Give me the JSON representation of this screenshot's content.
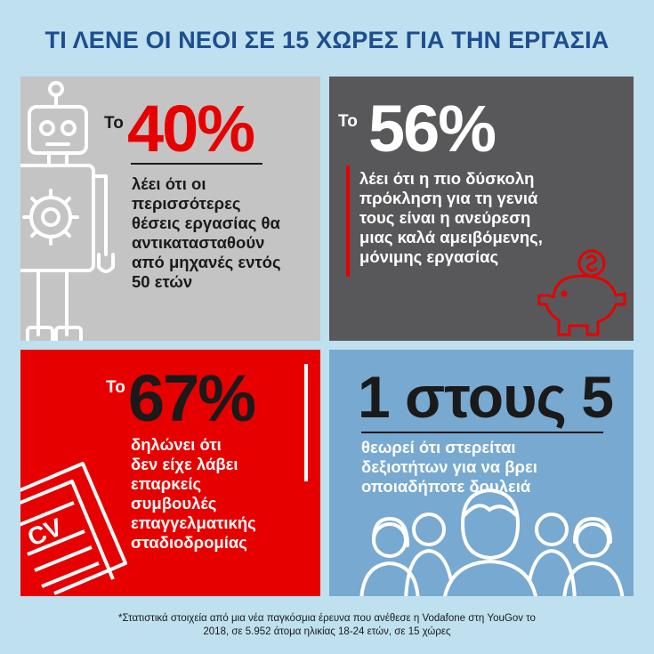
{
  "title": "ΤΙ ΛΕΝΕ ΟΙ ΝΕΟΙ ΣΕ 15 ΧΩΡΕΣ ΓΙΑ ΤΗΝ ΕΡΓΑΣΙΑ",
  "colors": {
    "title": "#1d4e8f",
    "red": "#e60000",
    "dark": "#58585a",
    "grey": "#c4c4c4",
    "blue": "#78a9d1",
    "background": "#bfe0ef"
  },
  "panels": [
    {
      "to": "Το",
      "stat": "40%",
      "body": [
        "λέει ότι οι",
        "περισσότερες",
        "θέσεις εργασίας θα",
        "αντικατασταθούν",
        "από μηχανές εντός",
        "50 ετών"
      ],
      "icon": "robot-gear-icon"
    },
    {
      "to": "Το",
      "stat": "56%",
      "body": [
        "λέει ότι η πιο δύσκολη",
        "πρόκληση για τη γενιά",
        "τους είναι η ανεύρεση",
        "μιας καλά αμειβόμενης,",
        "μόνιμης εργασίας"
      ],
      "icon": "piggy-bank-icon"
    },
    {
      "to": "Το",
      "stat": "67%",
      "body": [
        "δηλώνει ότι",
        "δεν είχε λάβει",
        "επαρκείς",
        "συμβουλές",
        "επαγγελματικής",
        "σταδιοδρομίας"
      ],
      "icon": "cv-document-icon",
      "icon_text": "CV"
    },
    {
      "stat": "1 στους 5",
      "body": [
        "θεωρεί ότι στερείται",
        "δεξιοτήτων για να βρει",
        "οποιαδήποτε δουλειά"
      ],
      "icon": "people-group-icon"
    }
  ],
  "footer": [
    "*Στατιστικά στοιχεία από μια νέα παγκόσμια έρευνα που ανέθεσε η Vodafone στη YouGov το",
    "2018, σε 5.952 άτομα ηλικίας 18-24 ετών, σε 15 χώρες"
  ]
}
